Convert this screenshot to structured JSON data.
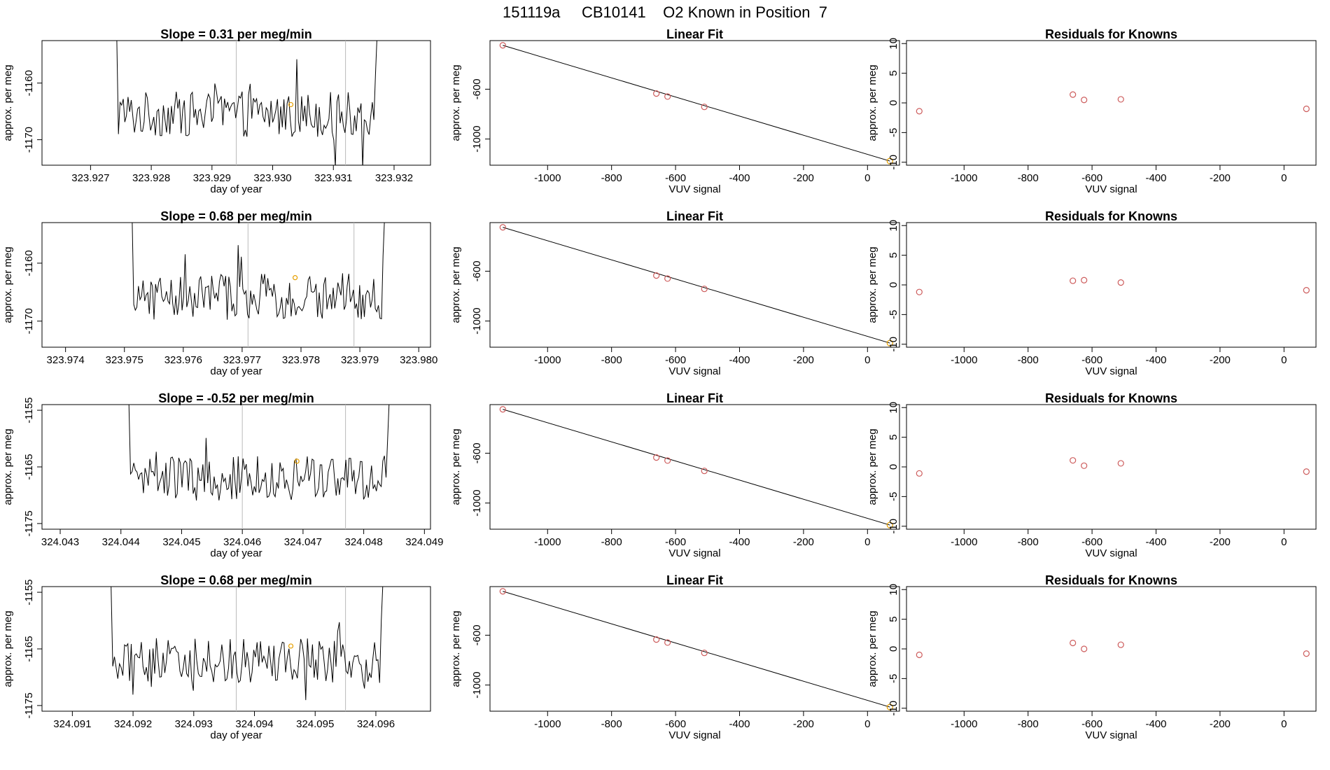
{
  "title": "151119a     CB10141    O2 Known in Position  7",
  "colors": {
    "trace": "#000000",
    "frame": "#000000",
    "guide": "#bbbbbb",
    "known_point": "#cd5c5c",
    "current_point": "#e69f00"
  },
  "chart_data": [
    {
      "type": "line",
      "row": 1,
      "title": "Slope =  0.31  per meg/min",
      "slope": 0.31,
      "xlabel": "day of year",
      "ylabel": "approx. per meg",
      "xlim": [
        323.9262,
        323.9326
      ],
      "ylim": [
        -1174.5,
        -1152.5
      ],
      "xticks": [
        323.927,
        323.928,
        323.929,
        323.93,
        323.931,
        323.932
      ],
      "xtick_labels": [
        "323.927",
        "323.928",
        "323.929",
        "323.930",
        "323.931",
        "323.932"
      ],
      "yticks": [
        -1160,
        -1170
      ],
      "ytick_labels": [
        "-1160",
        "-1170"
      ],
      "vlines": [
        323.9294,
        323.9312
      ],
      "trace_start": 323.9273,
      "trace_end": 323.9318,
      "marker": {
        "x": 323.9303,
        "y": -1163.8
      }
    },
    {
      "type": "line",
      "row": 1,
      "title": "Linear Fit",
      "xlabel": "VUV signal",
      "ylabel": "approx. per meg",
      "xlim": [
        -1180,
        100
      ],
      "ylim": [
        -1210,
        -210
      ],
      "xticks": [
        -1000,
        -800,
        -600,
        -400,
        -200,
        0
      ],
      "xtick_labels": [
        "-1000",
        "-800",
        "-600",
        "-400",
        "-200",
        "0"
      ],
      "yticks": [
        -600,
        -1000
      ],
      "ytick_labels": [
        "-600",
        "-1000"
      ],
      "fit_line": {
        "x": [
          -1140,
          70
        ],
        "y": [
          -248,
          -1177
        ]
      },
      "points": {
        "x": [
          -1140,
          -660,
          -625,
          -510,
          70
        ],
        "y": [
          -248,
          -635,
          -659,
          -742,
          -1177
        ]
      },
      "current_index": 4
    },
    {
      "type": "scatter",
      "row": 1,
      "title": "Residuals for Knowns",
      "xlabel": "VUV signal",
      "ylabel": "approx. per meg",
      "xlim": [
        -1180,
        100
      ],
      "ylim": [
        -10.5,
        10.5
      ],
      "xticks": [
        -1000,
        -800,
        -600,
        -400,
        -200,
        0
      ],
      "xtick_labels": [
        "-1000",
        "-800",
        "-600",
        "-400",
        "-200",
        "0"
      ],
      "yticks": [
        10,
        5,
        0,
        -5,
        -10
      ],
      "ytick_labels": [
        "10",
        "5",
        "0",
        "-5",
        "-10"
      ],
      "points": {
        "x": [
          -1140,
          -660,
          -625,
          -510,
          70
        ],
        "y": [
          -1.4,
          1.4,
          0.5,
          0.6,
          -1.0
        ]
      }
    },
    {
      "type": "line",
      "row": 2,
      "title": "Slope =  0.68  per meg/min",
      "slope": 0.68,
      "xlabel": "day of year",
      "ylabel": "approx. per meg",
      "xlim": [
        323.9736,
        323.9802
      ],
      "ylim": [
        -1174.5,
        -1153
      ],
      "xticks": [
        323.974,
        323.975,
        323.976,
        323.977,
        323.978,
        323.979,
        323.98
      ],
      "xtick_labels": [
        "323.974",
        "323.975",
        "323.976",
        "323.977",
        "323.978",
        "323.979",
        "323.980"
      ],
      "yticks": [
        -1160,
        -1170
      ],
      "ytick_labels": [
        "-1160",
        "-1170"
      ],
      "vlines": [
        323.9771,
        323.9789
      ],
      "trace_start": 323.975,
      "trace_end": 323.9795,
      "marker": {
        "x": 323.9779,
        "y": -1162.5
      }
    },
    {
      "type": "line",
      "row": 2,
      "title": "Linear Fit",
      "xlabel": "VUV signal",
      "ylabel": "approx. per meg",
      "xlim": [
        -1180,
        100
      ],
      "ylim": [
        -1210,
        -210
      ],
      "xticks": [
        -1000,
        -800,
        -600,
        -400,
        -200,
        0
      ],
      "xtick_labels": [
        "-1000",
        "-800",
        "-600",
        "-400",
        "-200",
        "0"
      ],
      "yticks": [
        -600,
        -1000
      ],
      "ytick_labels": [
        "-600",
        "-1000"
      ],
      "fit_line": {
        "x": [
          -1140,
          70
        ],
        "y": [
          -248,
          -1177
        ]
      },
      "points": {
        "x": [
          -1140,
          -660,
          -625,
          -510,
          70
        ],
        "y": [
          -248,
          -635,
          -659,
          -742,
          -1177
        ]
      },
      "current_index": 4
    },
    {
      "type": "scatter",
      "row": 2,
      "title": "Residuals for Knowns",
      "xlabel": "VUV signal",
      "ylabel": "approx. per meg",
      "xlim": [
        -1180,
        100
      ],
      "ylim": [
        -10.5,
        10.5
      ],
      "xticks": [
        -1000,
        -800,
        -600,
        -400,
        -200,
        0
      ],
      "xtick_labels": [
        "-1000",
        "-800",
        "-600",
        "-400",
        "-200",
        "0"
      ],
      "yticks": [
        10,
        5,
        0,
        -5,
        -10
      ],
      "ytick_labels": [
        "10",
        "5",
        "0",
        "-5",
        "-10"
      ],
      "points": {
        "x": [
          -1140,
          -660,
          -625,
          -510,
          70
        ],
        "y": [
          -1.2,
          0.7,
          0.8,
          0.4,
          -0.9
        ]
      }
    },
    {
      "type": "line",
      "row": 3,
      "title": "Slope =  -0.52  per meg/min",
      "slope": -0.52,
      "xlabel": "day of year",
      "ylabel": "approx. per meg",
      "xlim": [
        324.0427,
        324.0491
      ],
      "ylim": [
        -1176,
        -1154
      ],
      "xticks": [
        324.043,
        324.044,
        324.045,
        324.046,
        324.047,
        324.048,
        324.049
      ],
      "xtick_labels": [
        "324.043",
        "324.044",
        "324.045",
        "324.046",
        "324.047",
        "324.048",
        "324.049"
      ],
      "yticks": [
        -1155,
        -1165,
        -1175
      ],
      "ytick_labels": [
        "-1155",
        "-1165",
        "-1175"
      ],
      "vlines": [
        324.046,
        324.0477
      ],
      "trace_start": 324.044,
      "trace_end": 324.0485,
      "marker": {
        "x": 324.0469,
        "y": -1164
      }
    },
    {
      "type": "line",
      "row": 3,
      "title": "Linear Fit",
      "xlabel": "VUV signal",
      "ylabel": "approx. per meg",
      "xlim": [
        -1180,
        100
      ],
      "ylim": [
        -1210,
        -210
      ],
      "xticks": [
        -1000,
        -800,
        -600,
        -400,
        -200,
        0
      ],
      "xtick_labels": [
        "-1000",
        "-800",
        "-600",
        "-400",
        "-200",
        "0"
      ],
      "yticks": [
        -600,
        -1000
      ],
      "ytick_labels": [
        "-600",
        "-1000"
      ],
      "fit_line": {
        "x": [
          -1140,
          70
        ],
        "y": [
          -248,
          -1177
        ]
      },
      "points": {
        "x": [
          -1140,
          -660,
          -625,
          -510,
          70
        ],
        "y": [
          -248,
          -635,
          -659,
          -742,
          -1177
        ]
      },
      "current_index": 4
    },
    {
      "type": "scatter",
      "row": 3,
      "title": "Residuals for Knowns",
      "xlabel": "VUV signal",
      "ylabel": "approx. per meg",
      "xlim": [
        -1180,
        100
      ],
      "ylim": [
        -10.5,
        10.5
      ],
      "xticks": [
        -1000,
        -800,
        -600,
        -400,
        -200,
        0
      ],
      "xtick_labels": [
        "-1000",
        "-800",
        "-600",
        "-400",
        "-200",
        "0"
      ],
      "yticks": [
        10,
        5,
        0,
        -5,
        -10
      ],
      "ytick_labels": [
        "10",
        "5",
        "0",
        "-5",
        "-10"
      ],
      "points": {
        "x": [
          -1140,
          -660,
          -625,
          -510,
          70
        ],
        "y": [
          -1.1,
          1.1,
          0.2,
          0.6,
          -0.8
        ]
      }
    },
    {
      "type": "line",
      "row": 4,
      "title": "Slope =  0.68  per meg/min",
      "slope": 0.68,
      "xlabel": "day of year",
      "ylabel": "approx. per meg",
      "xlim": [
        324.0905,
        324.0969
      ],
      "ylim": [
        -1176,
        -1154
      ],
      "xticks": [
        324.091,
        324.092,
        324.093,
        324.094,
        324.095,
        324.096
      ],
      "xtick_labels": [
        "324.091",
        "324.092",
        "324.093",
        "324.094",
        "324.095",
        "324.096"
      ],
      "yticks": [
        -1155,
        -1165,
        -1175
      ],
      "ytick_labels": [
        "-1155",
        "-1165",
        "-1175"
      ],
      "vlines": [
        324.0937,
        324.0955
      ],
      "trace_start": 324.0915,
      "trace_end": 324.0962,
      "marker": {
        "x": 324.0946,
        "y": -1164.5
      }
    },
    {
      "type": "line",
      "row": 4,
      "title": "Linear Fit",
      "xlabel": "VUV signal",
      "ylabel": "approx. per meg",
      "xlim": [
        -1180,
        100
      ],
      "ylim": [
        -1210,
        -210
      ],
      "xticks": [
        -1000,
        -800,
        -600,
        -400,
        -200,
        0
      ],
      "xtick_labels": [
        "-1000",
        "-800",
        "-600",
        "-400",
        "-200",
        "0"
      ],
      "yticks": [
        -600,
        -1000
      ],
      "ytick_labels": [
        "-600",
        "-1000"
      ],
      "fit_line": {
        "x": [
          -1140,
          70
        ],
        "y": [
          -248,
          -1177
        ]
      },
      "points": {
        "x": [
          -1140,
          -660,
          -625,
          -510,
          70
        ],
        "y": [
          -248,
          -635,
          -659,
          -742,
          -1177
        ]
      },
      "current_index": 4
    },
    {
      "type": "scatter",
      "row": 4,
      "title": "Residuals for Knowns",
      "xlabel": "VUV signal",
      "ylabel": "approx. per meg",
      "xlim": [
        -1180,
        100
      ],
      "ylim": [
        -10.5,
        10.5
      ],
      "xticks": [
        -1000,
        -800,
        -600,
        -400,
        -200,
        0
      ],
      "xtick_labels": [
        "-1000",
        "-800",
        "-600",
        "-400",
        "-200",
        "0"
      ],
      "yticks": [
        10,
        5,
        0,
        -5,
        -10
      ],
      "ytick_labels": [
        "10",
        "5",
        "0",
        "-5",
        "-10"
      ],
      "points": {
        "x": [
          -1140,
          -660,
          -625,
          -510,
          70
        ],
        "y": [
          -1.0,
          1.0,
          0.0,
          0.7,
          -0.8
        ]
      }
    }
  ]
}
